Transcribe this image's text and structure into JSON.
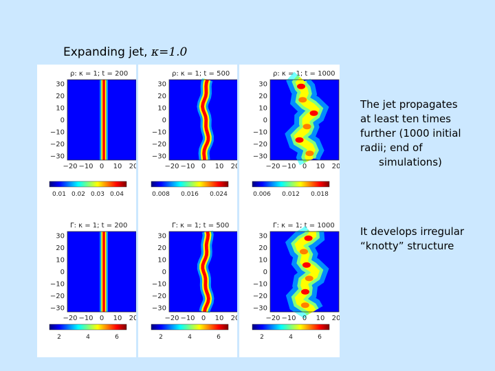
{
  "slide": {
    "title_text": "Expanding jet,",
    "title_kappa": "κ=1.0",
    "note1_lines": [
      "The jet propagates",
      "at least ten times",
      "further (1000 initial",
      "radii;   end of",
      "simulations)"
    ],
    "note2_lines": [
      "It develops irregular",
      "“knotty” structure"
    ]
  },
  "panels": [
    {
      "label": "ρ: κ = 1; t = 200",
      "variable": "rho",
      "time": 200,
      "state": "narrow-straight"
    },
    {
      "label": "ρ: κ = 1; t = 500",
      "variable": "rho",
      "time": 500,
      "state": "slightly-wiggly"
    },
    {
      "label": "ρ: κ = 1; t = 1000",
      "variable": "rho",
      "time": 1000,
      "state": "irregular-knotty"
    },
    {
      "label": "Γ: κ = 1; t = 200",
      "variable": "Gamma",
      "time": 200,
      "state": "narrow-straight"
    },
    {
      "label": "Γ: κ = 1; t = 500",
      "variable": "Gamma",
      "time": 500,
      "state": "slightly-wiggly"
    },
    {
      "label": "Γ: κ = 1; t = 1000",
      "variable": "Gamma",
      "time": 1000,
      "state": "irregular-knotty"
    }
  ],
  "y_ticks": [
    "30",
    "20",
    "10",
    "0",
    "−10",
    "−20",
    "−30"
  ],
  "x_ticks": [
    "−20",
    "−10",
    "0",
    "10",
    "20"
  ],
  "colorbars": [
    {
      "ticks": [
        "0.01",
        "0.02",
        "0.03",
        "0.04"
      ]
    },
    {
      "ticks": [
        "0.008",
        "0.016",
        "0.024"
      ]
    },
    {
      "ticks": [
        "0.006",
        "0.012",
        "0.018"
      ]
    },
    {
      "ticks": [
        "2",
        "4",
        "6"
      ]
    },
    {
      "ticks": [
        "2",
        "4",
        "6"
      ]
    },
    {
      "ticks": [
        "2",
        "4",
        "6"
      ]
    }
  ],
  "colormap": [
    "#00007f",
    "#0000ff",
    "#007fff",
    "#00ffff",
    "#7fff7f",
    "#ffff00",
    "#ff7f00",
    "#ff0000",
    "#7f0000"
  ]
}
